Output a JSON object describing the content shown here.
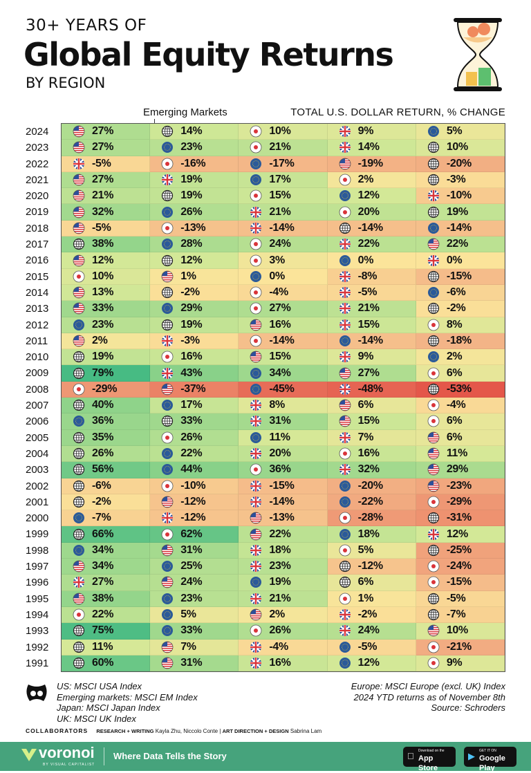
{
  "header": {
    "kicker": "30+ YEARS OF",
    "title": "Global Equity Returns",
    "subtitle_small": "BY REGION",
    "em_callout": "Emerging Markets",
    "measure": "TOTAL U.S. DOLLAR RETURN, % CHANGE"
  },
  "colors": {
    "neg_max": "#e4574a",
    "neg_mid": "#f3b386",
    "zero": "#fbe49a",
    "pos_low": "#d3e897",
    "pos_mid": "#8fd38a",
    "pos_max": "#47bb83",
    "footer": "#46a37c"
  },
  "regions": {
    "us": "United States",
    "em": "Emerging Markets",
    "jp": "Japan",
    "uk": "United Kingdom",
    "eu": "Europe"
  },
  "chart_data": {
    "type": "table",
    "title": "Global Equity Returns",
    "units": "% total U.S. dollar return",
    "note": "cells ranked best to worst per year; color scale red (negative) to green (positive)",
    "rows": [
      {
        "year": "2024",
        "cells": [
          [
            "us",
            27
          ],
          [
            "em",
            14
          ],
          [
            "jp",
            10
          ],
          [
            "uk",
            9
          ],
          [
            "eu",
            5
          ]
        ]
      },
      {
        "year": "2023",
        "cells": [
          [
            "us",
            27
          ],
          [
            "eu",
            23
          ],
          [
            "jp",
            21
          ],
          [
            "uk",
            14
          ],
          [
            "em",
            10
          ]
        ]
      },
      {
        "year": "2022",
        "cells": [
          [
            "uk",
            -5
          ],
          [
            "jp",
            -16
          ],
          [
            "eu",
            -17
          ],
          [
            "us",
            -19
          ],
          [
            "em",
            -20
          ]
        ]
      },
      {
        "year": "2021",
        "cells": [
          [
            "us",
            27
          ],
          [
            "uk",
            19
          ],
          [
            "eu",
            17
          ],
          [
            "jp",
            2
          ],
          [
            "em",
            -3
          ]
        ]
      },
      {
        "year": "2020",
        "cells": [
          [
            "us",
            21
          ],
          [
            "em",
            19
          ],
          [
            "jp",
            15
          ],
          [
            "eu",
            12
          ],
          [
            "uk",
            -10
          ]
        ]
      },
      {
        "year": "2019",
        "cells": [
          [
            "us",
            32
          ],
          [
            "eu",
            26
          ],
          [
            "uk",
            21
          ],
          [
            "jp",
            20
          ],
          [
            "em",
            19
          ]
        ]
      },
      {
        "year": "2018",
        "cells": [
          [
            "us",
            -5
          ],
          [
            "jp",
            -13
          ],
          [
            "uk",
            -14
          ],
          [
            "em",
            -14
          ],
          [
            "eu",
            -14
          ]
        ]
      },
      {
        "year": "2017",
        "cells": [
          [
            "em",
            38
          ],
          [
            "eu",
            28
          ],
          [
            "jp",
            24
          ],
          [
            "uk",
            22
          ],
          [
            "us",
            22
          ]
        ]
      },
      {
        "year": "2016",
        "cells": [
          [
            "us",
            12
          ],
          [
            "em",
            12
          ],
          [
            "jp",
            3
          ],
          [
            "eu",
            0
          ],
          [
            "uk",
            0
          ]
        ]
      },
      {
        "year": "2015",
        "cells": [
          [
            "jp",
            10
          ],
          [
            "us",
            1
          ],
          [
            "eu",
            0
          ],
          [
            "uk",
            -8
          ],
          [
            "em",
            -15
          ]
        ]
      },
      {
        "year": "2014",
        "cells": [
          [
            "us",
            13
          ],
          [
            "em",
            -2
          ],
          [
            "jp",
            -4
          ],
          [
            "uk",
            -5
          ],
          [
            "eu",
            -6
          ]
        ]
      },
      {
        "year": "2013",
        "cells": [
          [
            "us",
            33
          ],
          [
            "eu",
            29
          ],
          [
            "jp",
            27
          ],
          [
            "uk",
            21
          ],
          [
            "em",
            -2
          ]
        ]
      },
      {
        "year": "2012",
        "cells": [
          [
            "eu",
            23
          ],
          [
            "em",
            19
          ],
          [
            "us",
            16
          ],
          [
            "uk",
            15
          ],
          [
            "jp",
            8
          ]
        ]
      },
      {
        "year": "2011",
        "cells": [
          [
            "us",
            2
          ],
          [
            "uk",
            -3
          ],
          [
            "jp",
            -14
          ],
          [
            "eu",
            -14
          ],
          [
            "em",
            -18
          ]
        ]
      },
      {
        "year": "2010",
        "cells": [
          [
            "em",
            19
          ],
          [
            "jp",
            16
          ],
          [
            "us",
            15
          ],
          [
            "uk",
            9
          ],
          [
            "eu",
            2
          ]
        ]
      },
      {
        "year": "2009",
        "cells": [
          [
            "em",
            79
          ],
          [
            "uk",
            43
          ],
          [
            "eu",
            34
          ],
          [
            "us",
            27
          ],
          [
            "jp",
            6
          ]
        ]
      },
      {
        "year": "2008",
        "cells": [
          [
            "jp",
            -29
          ],
          [
            "us",
            -37
          ],
          [
            "eu",
            -45
          ],
          [
            "uk",
            -48
          ],
          [
            "em",
            -53
          ]
        ]
      },
      {
        "year": "2007",
        "cells": [
          [
            "em",
            40
          ],
          [
            "eu",
            17
          ],
          [
            "uk",
            8
          ],
          [
            "us",
            6
          ],
          [
            "jp",
            -4
          ]
        ]
      },
      {
        "year": "2006",
        "cells": [
          [
            "eu",
            36
          ],
          [
            "em",
            33
          ],
          [
            "uk",
            31
          ],
          [
            "us",
            15
          ],
          [
            "jp",
            6
          ]
        ]
      },
      {
        "year": "2005",
        "cells": [
          [
            "em",
            35
          ],
          [
            "jp",
            26
          ],
          [
            "eu",
            11
          ],
          [
            "uk",
            7
          ],
          [
            "us",
            6
          ]
        ]
      },
      {
        "year": "2004",
        "cells": [
          [
            "em",
            26
          ],
          [
            "eu",
            22
          ],
          [
            "uk",
            20
          ],
          [
            "jp",
            16
          ],
          [
            "us",
            11
          ]
        ]
      },
      {
        "year": "2003",
        "cells": [
          [
            "em",
            56
          ],
          [
            "eu",
            44
          ],
          [
            "jp",
            36
          ],
          [
            "uk",
            32
          ],
          [
            "us",
            29
          ]
        ]
      },
      {
        "year": "2002",
        "cells": [
          [
            "em",
            -6
          ],
          [
            "jp",
            -10
          ],
          [
            "uk",
            -15
          ],
          [
            "eu",
            -20
          ],
          [
            "us",
            -23
          ]
        ]
      },
      {
        "year": "2001",
        "cells": [
          [
            "em",
            -2
          ],
          [
            "us",
            -12
          ],
          [
            "uk",
            -14
          ],
          [
            "eu",
            -22
          ],
          [
            "jp",
            -29
          ]
        ]
      },
      {
        "year": "2000",
        "cells": [
          [
            "eu",
            -7
          ],
          [
            "uk",
            -12
          ],
          [
            "us",
            -13
          ],
          [
            "jp",
            -28
          ],
          [
            "em",
            -31
          ]
        ]
      },
      {
        "year": "1999",
        "cells": [
          [
            "em",
            66
          ],
          [
            "jp",
            62
          ],
          [
            "us",
            22
          ],
          [
            "eu",
            18
          ],
          [
            "uk",
            12
          ]
        ]
      },
      {
        "year": "1998",
        "cells": [
          [
            "eu",
            34
          ],
          [
            "us",
            31
          ],
          [
            "uk",
            18
          ],
          [
            "jp",
            5
          ],
          [
            "em",
            -25
          ]
        ]
      },
      {
        "year": "1997",
        "cells": [
          [
            "us",
            34
          ],
          [
            "eu",
            25
          ],
          [
            "uk",
            23
          ],
          [
            "em",
            -12
          ],
          [
            "jp",
            -24
          ]
        ]
      },
      {
        "year": "1996",
        "cells": [
          [
            "uk",
            27
          ],
          [
            "us",
            24
          ],
          [
            "eu",
            19
          ],
          [
            "em",
            6
          ],
          [
            "jp",
            -15
          ]
        ]
      },
      {
        "year": "1995",
        "cells": [
          [
            "us",
            38
          ],
          [
            "eu",
            23
          ],
          [
            "uk",
            21
          ],
          [
            "jp",
            1
          ],
          [
            "em",
            -5
          ]
        ]
      },
      {
        "year": "1994",
        "cells": [
          [
            "jp",
            22
          ],
          [
            "eu",
            5
          ],
          [
            "us",
            2
          ],
          [
            "uk",
            -2
          ],
          [
            "em",
            -7
          ]
        ]
      },
      {
        "year": "1993",
        "cells": [
          [
            "em",
            75
          ],
          [
            "eu",
            33
          ],
          [
            "jp",
            26
          ],
          [
            "uk",
            24
          ],
          [
            "us",
            10
          ]
        ]
      },
      {
        "year": "1992",
        "cells": [
          [
            "em",
            11
          ],
          [
            "us",
            7
          ],
          [
            "uk",
            -4
          ],
          [
            "eu",
            -5
          ],
          [
            "jp",
            -21
          ]
        ]
      },
      {
        "year": "1991",
        "cells": [
          [
            "em",
            60
          ],
          [
            "us",
            31
          ],
          [
            "uk",
            16
          ],
          [
            "eu",
            12
          ],
          [
            "jp",
            9
          ]
        ]
      }
    ]
  },
  "notes": {
    "left": [
      "US: MSCI USA Index",
      "Emerging markets: MSCI EM Index",
      "Japan: MSCI Japan Index",
      "UK: MSCI UK Index"
    ],
    "right": [
      "Europe: MSCI Europe (excl. UK) Index",
      "2024 YTD returns as of November 8th",
      "Source: Schroders"
    ]
  },
  "collaborators": {
    "label": "COLLABORATORS",
    "rw_label": "RESEARCH + WRITING",
    "rw_names": "Kayla Zhu, Niccolo Conte",
    "sep": "|",
    "ad_label": "ART DIRECTION + DESIGN",
    "ad_names": "Sabrina Lam"
  },
  "footer": {
    "brand": "voronoi",
    "brand_sub": "BY VISUAL CAPITALIST",
    "tagline": "Where Data Tells the Story",
    "appstore_small": "Download on the",
    "appstore": "App Store",
    "play_small": "GET IT ON",
    "play": "Google Play"
  }
}
